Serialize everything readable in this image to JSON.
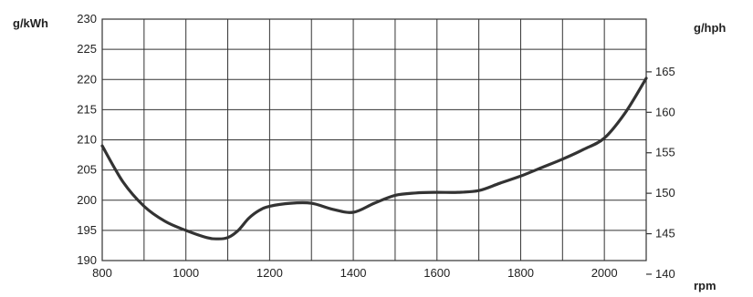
{
  "chart_data": {
    "type": "line",
    "title": "",
    "xlabel": "rpm",
    "ylabel_left": "g/kWh",
    "ylabel_right": "g/hph",
    "xlim": [
      800,
      2100
    ],
    "ylim_left": [
      190,
      230
    ],
    "ylim_right": [
      140,
      165
    ],
    "x_ticks": [
      800,
      1000,
      1200,
      1400,
      1600,
      1800,
      2000
    ],
    "x_grid_step": 100,
    "y_ticks_left": [
      190,
      195,
      200,
      205,
      210,
      215,
      220,
      225,
      230
    ],
    "y_ticks_right": [
      140,
      145,
      150,
      155,
      160,
      165
    ],
    "grid": true,
    "series": [
      {
        "x": [
          800,
          850,
          900,
          950,
          1000,
          1050,
          1075,
          1100,
          1125,
          1150,
          1175,
          1200,
          1250,
          1300,
          1350,
          1400,
          1450,
          1500,
          1550,
          1600,
          1650,
          1700,
          1750,
          1800,
          1850,
          1900,
          1950,
          2000,
          2050,
          2100
        ],
        "y": [
          209,
          203,
          199,
          196.5,
          195,
          193.8,
          193.6,
          193.8,
          195,
          197,
          198.3,
          199,
          199.5,
          199.5,
          198.5,
          198,
          199.5,
          200.8,
          201.2,
          201.3,
          201.3,
          201.6,
          202.8,
          204,
          205.4,
          206.8,
          208.4,
          210.3,
          214.5,
          220.2
        ]
      }
    ],
    "line_color": "#333333"
  }
}
